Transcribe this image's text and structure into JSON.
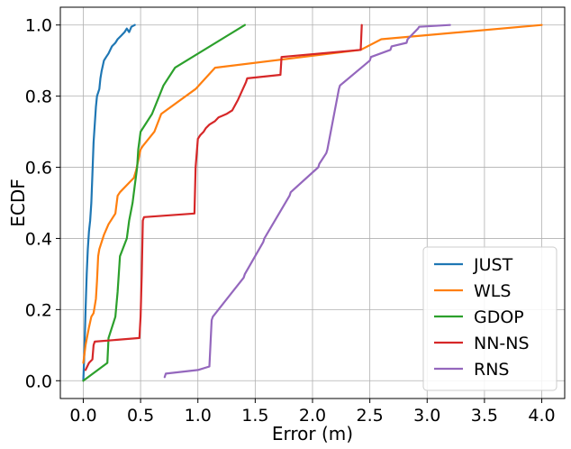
{
  "chart_data": {
    "type": "line",
    "title": "",
    "xlabel": "Error (m)",
    "ylabel": "ECDF",
    "xlim": [
      -0.2,
      4.2
    ],
    "ylim": [
      -0.05,
      1.05
    ],
    "xticks": [
      0.0,
      0.5,
      1.0,
      1.5,
      2.0,
      2.5,
      3.0,
      3.5,
      4.0
    ],
    "xtick_labels": [
      "0.0",
      "0.5",
      "1.0",
      "1.5",
      "2.0",
      "2.5",
      "3.0",
      "3.5",
      "4.0"
    ],
    "yticks": [
      0.0,
      0.2,
      0.4,
      0.6,
      0.8,
      1.0
    ],
    "ytick_labels": [
      "0.0",
      "0.2",
      "0.4",
      "0.6",
      "0.8",
      "1.0"
    ],
    "grid": true,
    "legend_position": "bottom-right",
    "series": [
      {
        "name": "JUST",
        "color": "#1f77b4",
        "x": [
          0.0,
          0.01,
          0.02,
          0.03,
          0.04,
          0.05,
          0.06,
          0.07,
          0.08,
          0.09,
          0.1,
          0.11,
          0.12,
          0.14,
          0.15,
          0.16,
          0.18,
          0.2,
          0.22,
          0.25,
          0.28,
          0.3,
          0.33,
          0.36,
          0.38,
          0.4,
          0.42,
          0.45
        ],
        "y": [
          0.0,
          0.08,
          0.2,
          0.3,
          0.37,
          0.42,
          0.45,
          0.5,
          0.58,
          0.67,
          0.72,
          0.77,
          0.8,
          0.82,
          0.85,
          0.87,
          0.9,
          0.91,
          0.92,
          0.94,
          0.95,
          0.96,
          0.97,
          0.98,
          0.99,
          0.98,
          0.995,
          1.0
        ]
      },
      {
        "name": "WLS",
        "color": "#ff7f0e",
        "x": [
          0.0,
          0.02,
          0.05,
          0.07,
          0.09,
          0.11,
          0.12,
          0.13,
          0.14,
          0.18,
          0.22,
          0.28,
          0.3,
          0.32,
          0.44,
          0.46,
          0.5,
          0.52,
          0.62,
          0.68,
          0.98,
          1.15,
          2.42,
          2.6,
          4.0
        ],
        "y": [
          0.05,
          0.1,
          0.15,
          0.18,
          0.19,
          0.23,
          0.28,
          0.35,
          0.37,
          0.41,
          0.44,
          0.47,
          0.52,
          0.53,
          0.57,
          0.59,
          0.65,
          0.66,
          0.7,
          0.75,
          0.82,
          0.88,
          0.93,
          0.96,
          1.0
        ]
      },
      {
        "name": "GDOP",
        "color": "#2ca02c",
        "x": [
          0.0,
          0.21,
          0.22,
          0.28,
          0.3,
          0.32,
          0.38,
          0.4,
          0.43,
          0.45,
          0.47,
          0.48,
          0.5,
          0.6,
          0.7,
          0.8,
          1.41
        ],
        "y": [
          0.0,
          0.05,
          0.12,
          0.18,
          0.25,
          0.35,
          0.4,
          0.45,
          0.5,
          0.55,
          0.6,
          0.65,
          0.7,
          0.75,
          0.83,
          0.88,
          1.0
        ]
      },
      {
        "name": "NN-NS",
        "color": "#d62728",
        "x": [
          0.02,
          0.05,
          0.08,
          0.09,
          0.1,
          0.49,
          0.5,
          0.51,
          0.52,
          0.53,
          0.97,
          0.98,
          1.0,
          1.02,
          1.05,
          1.07,
          1.1,
          1.15,
          1.18,
          1.25,
          1.3,
          1.35,
          1.42,
          1.43,
          1.72,
          1.73,
          2.42,
          2.43
        ],
        "y": [
          0.03,
          0.05,
          0.06,
          0.1,
          0.11,
          0.12,
          0.18,
          0.3,
          0.45,
          0.46,
          0.47,
          0.6,
          0.68,
          0.69,
          0.7,
          0.71,
          0.72,
          0.73,
          0.74,
          0.75,
          0.76,
          0.79,
          0.84,
          0.85,
          0.86,
          0.91,
          0.93,
          1.0
        ]
      },
      {
        "name": "RNS",
        "color": "#9467bd",
        "x": [
          0.71,
          0.72,
          1.0,
          1.1,
          1.12,
          1.13,
          1.4,
          1.41,
          1.57,
          1.58,
          1.8,
          1.81,
          2.05,
          2.06,
          2.12,
          2.13,
          2.23,
          2.24,
          2.5,
          2.51,
          2.68,
          2.69,
          2.82,
          2.83,
          2.92,
          2.93,
          3.2
        ],
        "y": [
          0.01,
          0.02,
          0.03,
          0.04,
          0.17,
          0.18,
          0.29,
          0.3,
          0.39,
          0.4,
          0.52,
          0.53,
          0.6,
          0.61,
          0.64,
          0.65,
          0.82,
          0.83,
          0.9,
          0.91,
          0.93,
          0.94,
          0.95,
          0.96,
          0.99,
          0.995,
          1.0
        ]
      }
    ]
  }
}
